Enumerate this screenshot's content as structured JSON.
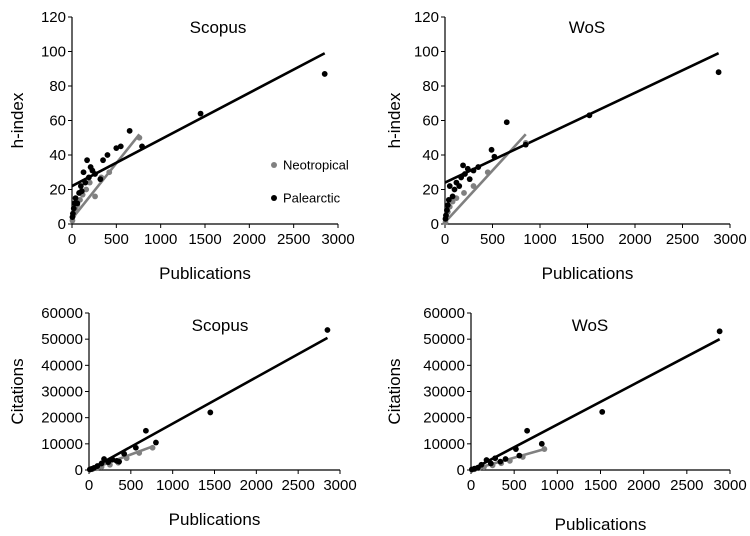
{
  "colors": {
    "palearctic": "#000000",
    "neotropical": "#808080",
    "axis": "#000000"
  },
  "chart_data": [
    {
      "type": "scatter",
      "title": "Scopus",
      "xlabel": "Publications",
      "ylabel": "h-index",
      "xlim": [
        0,
        3000
      ],
      "ylim": [
        0,
        120
      ],
      "xticks": [
        "0",
        "500",
        "1000",
        "1500",
        "2000",
        "2500",
        "3000"
      ],
      "yticks": [
        "0",
        "20",
        "40",
        "60",
        "80",
        "100",
        "120"
      ],
      "legend": {
        "position": "right-middle",
        "entries": [
          "Neotropical",
          "Palearctic"
        ]
      },
      "series": [
        {
          "name": "Neotropical",
          "color": "#808080",
          "points": [
            [
              5,
              2
            ],
            [
              15,
              5
            ],
            [
              25,
              7
            ],
            [
              40,
              9
            ],
            [
              60,
              11
            ],
            [
              90,
              14
            ],
            [
              120,
              17
            ],
            [
              160,
              20
            ],
            [
              200,
              24
            ],
            [
              260,
              16
            ],
            [
              330,
              27
            ],
            [
              420,
              30
            ],
            [
              760,
              50
            ]
          ],
          "trend": [
            [
              0,
              3
            ],
            [
              760,
              52
            ]
          ]
        },
        {
          "name": "Palearctic",
          "color": "#000000",
          "points": [
            [
              5,
              4
            ],
            [
              10,
              6
            ],
            [
              20,
              9
            ],
            [
              30,
              12
            ],
            [
              40,
              15
            ],
            [
              60,
              12
            ],
            [
              80,
              18
            ],
            [
              100,
              22
            ],
            [
              110,
              19
            ],
            [
              130,
              30
            ],
            [
              150,
              24
            ],
            [
              170,
              37
            ],
            [
              190,
              27
            ],
            [
              210,
              33
            ],
            [
              230,
              31
            ],
            [
              260,
              29
            ],
            [
              320,
              26
            ],
            [
              350,
              37
            ],
            [
              400,
              40
            ],
            [
              500,
              44
            ],
            [
              550,
              45
            ],
            [
              650,
              54
            ],
            [
              790,
              45
            ],
            [
              1450,
              64
            ],
            [
              2850,
              87
            ]
          ],
          "trend": [
            [
              0,
              22
            ],
            [
              2850,
              99
            ]
          ]
        }
      ]
    },
    {
      "type": "scatter",
      "title": "WoS",
      "xlabel": "Publications",
      "ylabel": "h-index",
      "xlim": [
        0,
        3000
      ],
      "ylim": [
        0,
        120
      ],
      "xticks": [
        "0",
        "500",
        "1000",
        "1500",
        "2000",
        "2500",
        "3000"
      ],
      "yticks": [
        "0",
        "20",
        "40",
        "60",
        "80",
        "100",
        "120"
      ],
      "series": [
        {
          "name": "Neotropical",
          "color": "#808080",
          "points": [
            [
              5,
              1
            ],
            [
              15,
              4
            ],
            [
              30,
              7
            ],
            [
              50,
              10
            ],
            [
              80,
              13
            ],
            [
              120,
              15
            ],
            [
              200,
              18
            ],
            [
              300,
              22
            ],
            [
              450,
              30
            ],
            [
              850,
              47
            ]
          ],
          "trend": [
            [
              0,
              1
            ],
            [
              850,
              52
            ]
          ]
        },
        {
          "name": "Palearctic",
          "color": "#000000",
          "points": [
            [
              5,
              3
            ],
            [
              10,
              5
            ],
            [
              20,
              8
            ],
            [
              30,
              11
            ],
            [
              40,
              14
            ],
            [
              50,
              22
            ],
            [
              80,
              16
            ],
            [
              100,
              20
            ],
            [
              120,
              24
            ],
            [
              150,
              22
            ],
            [
              170,
              27
            ],
            [
              190,
              34
            ],
            [
              210,
              29
            ],
            [
              240,
              32
            ],
            [
              260,
              26
            ],
            [
              300,
              31
            ],
            [
              350,
              33
            ],
            [
              490,
              43
            ],
            [
              520,
              39
            ],
            [
              650,
              59
            ],
            [
              850,
              46
            ],
            [
              1520,
              63
            ],
            [
              2880,
              88
            ]
          ],
          "trend": [
            [
              0,
              24
            ],
            [
              2880,
              99
            ]
          ]
        }
      ]
    },
    {
      "type": "scatter",
      "title": "Scopus",
      "xlabel": "Publications",
      "ylabel": "Citations",
      "xlim": [
        0,
        3000
      ],
      "ylim": [
        0,
        60000
      ],
      "xticks": [
        "0",
        "500",
        "1000",
        "1500",
        "2000",
        "2500",
        "3000"
      ],
      "yticks": [
        "0",
        "10000",
        "20000",
        "30000",
        "40000",
        "50000",
        "60000"
      ],
      "series": [
        {
          "name": "Neotropical",
          "color": "#808080",
          "points": [
            [
              10,
              100
            ],
            [
              40,
              300
            ],
            [
              90,
              700
            ],
            [
              150,
              1200
            ],
            [
              250,
              2000
            ],
            [
              350,
              2800
            ],
            [
              450,
              4500
            ],
            [
              600,
              6500
            ],
            [
              760,
              8500
            ]
          ],
          "trend": [
            [
              0,
              0
            ],
            [
              760,
              9000
            ]
          ]
        },
        {
          "name": "Palearctic",
          "color": "#000000",
          "points": [
            [
              10,
              200
            ],
            [
              30,
              400
            ],
            [
              60,
              800
            ],
            [
              100,
              1500
            ],
            [
              150,
              2500
            ],
            [
              180,
              4200
            ],
            [
              230,
              3000
            ],
            [
              280,
              4000
            ],
            [
              330,
              3500
            ],
            [
              360,
              3200
            ],
            [
              420,
              6200
            ],
            [
              560,
              8500
            ],
            [
              680,
              15000
            ],
            [
              800,
              10500
            ],
            [
              1450,
              22000
            ],
            [
              2850,
              53500
            ]
          ],
          "trend": [
            [
              0,
              0
            ],
            [
              2850,
              50500
            ]
          ]
        }
      ]
    },
    {
      "type": "scatter",
      "title": "WoS",
      "xlabel": "Publications",
      "ylabel": "Citations",
      "xlim": [
        0,
        3000
      ],
      "ylim": [
        0,
        60000
      ],
      "xticks": [
        "0",
        "500",
        "1000",
        "1500",
        "2000",
        "2500",
        "3000"
      ],
      "yticks": [
        "0",
        "10000",
        "20000",
        "30000",
        "40000",
        "50000",
        "60000"
      ],
      "series": [
        {
          "name": "Neotropical",
          "color": "#808080",
          "points": [
            [
              10,
              100
            ],
            [
              40,
              300
            ],
            [
              90,
              700
            ],
            [
              150,
              1100
            ],
            [
              250,
              1800
            ],
            [
              350,
              2600
            ],
            [
              450,
              3500
            ],
            [
              600,
              5000
            ],
            [
              850,
              8000
            ]
          ],
          "trend": [
            [
              0,
              0
            ],
            [
              850,
              8000
            ]
          ]
        },
        {
          "name": "Palearctic",
          "color": "#000000",
          "points": [
            [
              10,
              200
            ],
            [
              40,
              500
            ],
            [
              80,
              900
            ],
            [
              120,
              2000
            ],
            [
              180,
              3800
            ],
            [
              230,
              2500
            ],
            [
              280,
              4500
            ],
            [
              340,
              3200
            ],
            [
              400,
              4200
            ],
            [
              520,
              8000
            ],
            [
              560,
              5500
            ],
            [
              650,
              15000
            ],
            [
              820,
              10000
            ],
            [
              1520,
              22200
            ],
            [
              2880,
              53000
            ]
          ],
          "trend": [
            [
              0,
              0
            ],
            [
              2880,
              50000
            ]
          ]
        }
      ]
    }
  ]
}
